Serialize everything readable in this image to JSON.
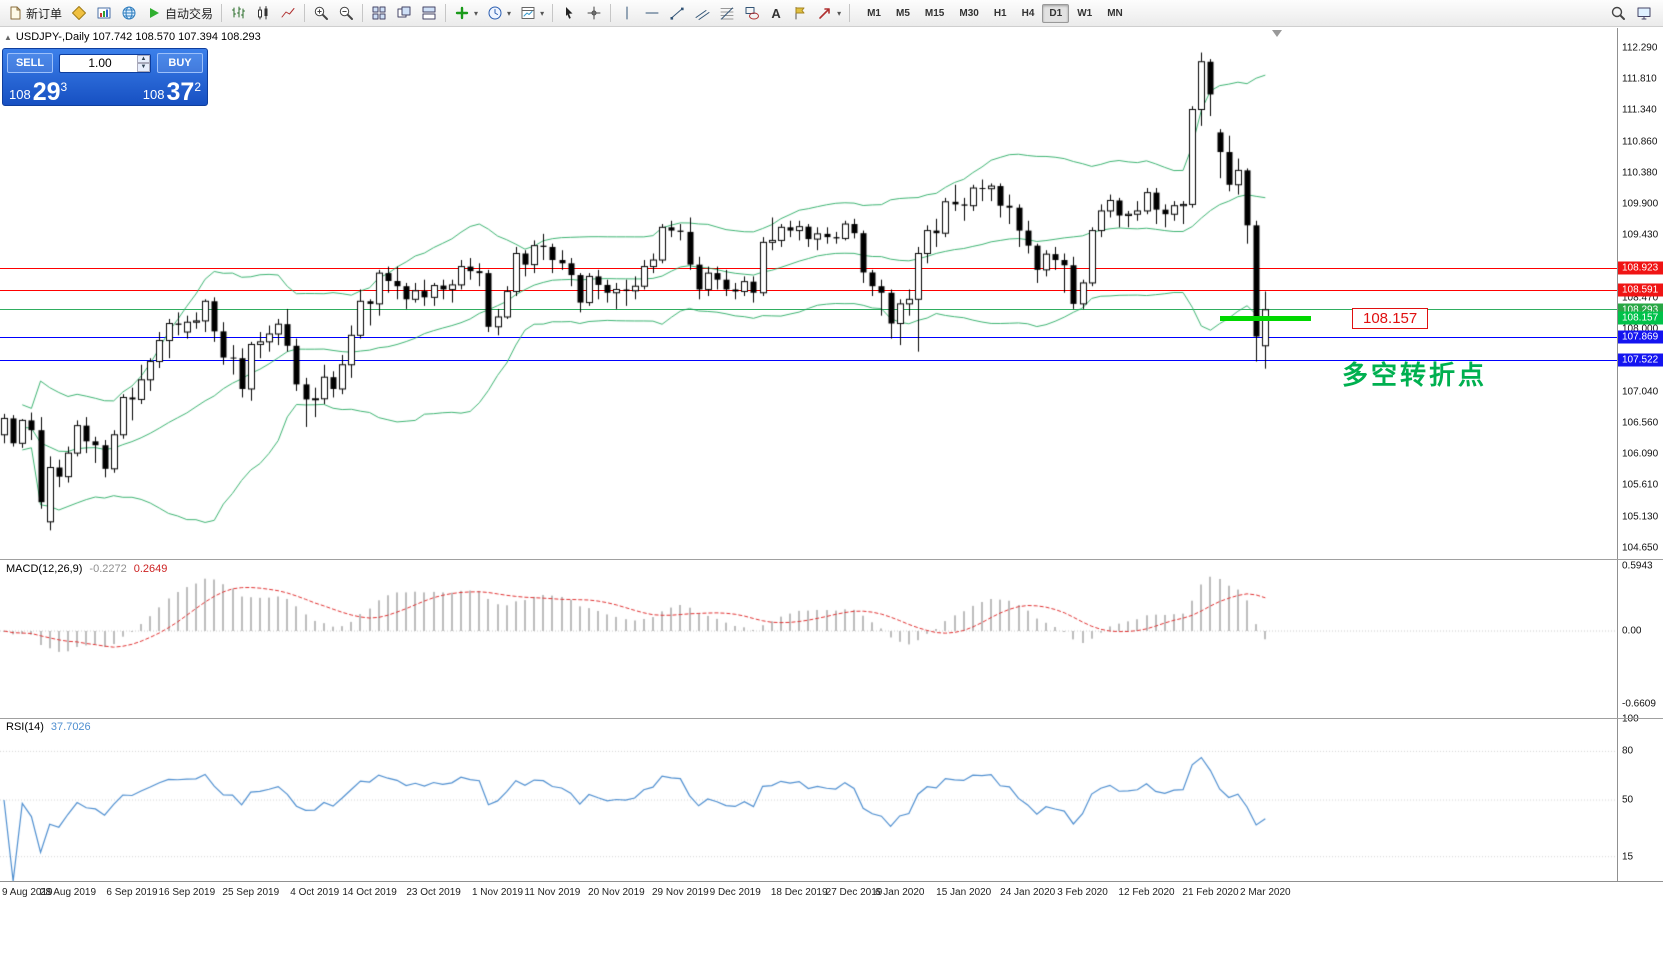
{
  "toolbar": {
    "new_order_label": "新订单",
    "autotrading_label": "自动交易",
    "timeframes": [
      "M1",
      "M5",
      "M15",
      "M30",
      "H1",
      "H4",
      "D1",
      "W1",
      "MN"
    ],
    "active_timeframe": "D1"
  },
  "icons": {
    "caret": "▾",
    "collapse": "▲",
    "text_tool": "A",
    "spin_up": "▲",
    "spin_down": "▼"
  },
  "symbol_info": {
    "text": "USDJPY-,Daily 107.742 108.570 107.394 108.293"
  },
  "trade_panel": {
    "sell_label": "SELL",
    "buy_label": "BUY",
    "lot_value": "1.00",
    "sell_price": {
      "main": "108",
      "big": "29",
      "sup": "3"
    },
    "buy_price": {
      "main": "108",
      "big": "37",
      "sup": "2"
    }
  },
  "annotations": {
    "price_label": "108.157",
    "turning_point_note": "多空转折点"
  },
  "h_lines": [
    {
      "price": 108.923,
      "color": "#ff0000",
      "name": "resistance-line-1"
    },
    {
      "price": 108.591,
      "color": "#ff0000",
      "name": "resistance-line-2"
    },
    {
      "price": 108.293,
      "color": "#2fae60",
      "name": "bid-price-line"
    },
    {
      "price": 107.869,
      "color": "#0000ff",
      "name": "support-line-1"
    },
    {
      "price": 107.522,
      "color": "#0000ff",
      "name": "support-line-2"
    }
  ],
  "green_segment": {
    "price": 108.157,
    "from_bar": 133,
    "to_bar": 143,
    "color": "#00d800",
    "label": "108.157"
  },
  "markers": [
    {
      "price": 108.923,
      "color": "#f01414"
    },
    {
      "price": 108.591,
      "color": "#f01414"
    },
    {
      "price": 108.293,
      "color": "#28a745"
    },
    {
      "price": 108.157,
      "color": "#00c24a"
    },
    {
      "price": 107.869,
      "color": "#1414f0"
    },
    {
      "price": 107.522,
      "color": "#1414f0"
    }
  ],
  "price_axis_ticks": [
    112.29,
    111.81,
    111.34,
    110.86,
    110.38,
    109.9,
    109.43,
    108.47,
    108.0,
    107.04,
    106.56,
    106.09,
    105.61,
    105.13,
    104.65
  ],
  "macd": {
    "label": "MACD(12,26,9)",
    "value_main": "-0.2272",
    "value_signal": "0.2649",
    "axis": [
      {
        "v": 0.5943,
        "t": "0.5943"
      },
      {
        "v": 0,
        "t": "0.00"
      },
      {
        "v": -0.6609,
        "t": "-0.6609"
      }
    ]
  },
  "rsi": {
    "label": "RSI(14)",
    "value": "37.7026",
    "axis": [
      {
        "v": 100,
        "t": "100"
      },
      {
        "v": 80,
        "t": "80"
      },
      {
        "v": 50,
        "t": "50"
      },
      {
        "v": 15,
        "t": "15"
      }
    ]
  },
  "chart_data": {
    "type": "candlestick",
    "symbol": "USDJPY-",
    "timeframe": "Daily",
    "ohlc_format": [
      "open",
      "high",
      "low",
      "close"
    ],
    "y_range": [
      104.45,
      112.58
    ],
    "indicators": {
      "bollinger": {
        "period": 20,
        "deviation": 2
      },
      "macd": {
        "fast": 12,
        "slow": 26,
        "signal": 9,
        "current_main": -0.2272,
        "current_signal": 0.2649
      },
      "rsi": {
        "period": 14,
        "current": 37.7026
      }
    },
    "x_labels": [
      {
        "i": 0,
        "t": "9 Aug 2019"
      },
      {
        "i": 7,
        "t": "28 Aug 2019"
      },
      {
        "i": 14,
        "t": "6 Sep 2019"
      },
      {
        "i": 20,
        "t": "16 Sep 2019"
      },
      {
        "i": 27,
        "t": "25 Sep 2019"
      },
      {
        "i": 34,
        "t": "4 Oct 2019"
      },
      {
        "i": 40,
        "t": "14 Oct 2019"
      },
      {
        "i": 47,
        "t": "23 Oct 2019"
      },
      {
        "i": 54,
        "t": "1 Nov 2019"
      },
      {
        "i": 60,
        "t": "11 Nov 2019"
      },
      {
        "i": 67,
        "t": "20 Nov 2019"
      },
      {
        "i": 74,
        "t": "29 Nov 2019"
      },
      {
        "i": 80,
        "t": "9 Dec 2019"
      },
      {
        "i": 87,
        "t": "18 Dec 2019"
      },
      {
        "i": 93,
        "t": "27 Dec 2019"
      },
      {
        "i": 98,
        "t": "6 Jan 2020"
      },
      {
        "i": 105,
        "t": "15 Jan 2020"
      },
      {
        "i": 112,
        "t": "24 Jan 2020"
      },
      {
        "i": 118,
        "t": "3 Feb 2020"
      },
      {
        "i": 125,
        "t": "12 Feb 2020"
      },
      {
        "i": 132,
        "t": "21 Feb 2020"
      },
      {
        "i": 138,
        "t": "2 Mar 2020"
      }
    ],
    "ohlc": [
      [
        106.38,
        106.7,
        106.25,
        106.63
      ],
      [
        106.63,
        106.68,
        106.2,
        106.25
      ],
      [
        106.25,
        106.62,
        106.18,
        106.6
      ],
      [
        106.6,
        106.72,
        106.3,
        106.45
      ],
      [
        106.45,
        106.65,
        105.25,
        105.35
      ],
      [
        105.05,
        106.05,
        104.92,
        105.88
      ],
      [
        105.88,
        106.0,
        105.58,
        105.74
      ],
      [
        105.74,
        106.2,
        105.65,
        106.1
      ],
      [
        106.1,
        106.6,
        106.05,
        106.52
      ],
      [
        106.52,
        106.65,
        106.1,
        106.28
      ],
      [
        106.28,
        106.35,
        105.95,
        106.22
      ],
      [
        106.22,
        106.3,
        105.73,
        105.86
      ],
      [
        105.86,
        106.45,
        105.8,
        106.38
      ],
      [
        106.38,
        107.0,
        106.32,
        106.95
      ],
      [
        106.95,
        107.1,
        106.6,
        106.92
      ],
      [
        106.92,
        107.45,
        106.85,
        107.22
      ],
      [
        107.22,
        107.55,
        107.05,
        107.5
      ],
      [
        107.5,
        107.95,
        107.4,
        107.82
      ],
      [
        107.82,
        108.15,
        107.55,
        108.08
      ],
      [
        108.08,
        108.25,
        107.9,
        108.06
      ],
      [
        107.95,
        108.2,
        107.85,
        108.1
      ],
      [
        108.1,
        108.25,
        108.0,
        108.12
      ],
      [
        108.12,
        108.45,
        107.95,
        108.42
      ],
      [
        108.42,
        108.48,
        107.8,
        107.96
      ],
      [
        107.96,
        108.1,
        107.45,
        107.56
      ],
      [
        107.56,
        107.75,
        107.3,
        107.55
      ],
      [
        107.55,
        107.7,
        106.95,
        107.08
      ],
      [
        107.08,
        107.8,
        106.9,
        107.76
      ],
      [
        107.76,
        107.95,
        107.55,
        107.8
      ],
      [
        107.8,
        108.05,
        107.65,
        107.92
      ],
      [
        107.92,
        108.15,
        107.75,
        108.07
      ],
      [
        108.07,
        108.3,
        107.65,
        107.74
      ],
      [
        107.74,
        107.85,
        107.05,
        107.15
      ],
      [
        107.15,
        107.25,
        106.5,
        106.92
      ],
      [
        106.92,
        107.1,
        106.65,
        106.93
      ],
      [
        106.93,
        107.45,
        106.85,
        107.26
      ],
      [
        107.26,
        107.35,
        106.95,
        107.08
      ],
      [
        107.08,
        107.6,
        107.0,
        107.45
      ],
      [
        107.45,
        108.05,
        107.25,
        107.9
      ],
      [
        107.9,
        108.6,
        107.85,
        108.42
      ],
      [
        108.42,
        108.45,
        108.05,
        108.38
      ],
      [
        108.38,
        108.9,
        108.2,
        108.85
      ],
      [
        108.85,
        108.95,
        108.55,
        108.73
      ],
      [
        108.73,
        108.95,
        108.45,
        108.65
      ],
      [
        108.65,
        108.7,
        108.3,
        108.45
      ],
      [
        108.45,
        108.7,
        108.4,
        108.58
      ],
      [
        108.58,
        108.75,
        108.35,
        108.48
      ],
      [
        108.48,
        108.7,
        108.35,
        108.66
      ],
      [
        108.66,
        108.75,
        108.45,
        108.6
      ],
      [
        108.6,
        108.75,
        108.4,
        108.67
      ],
      [
        108.67,
        109.05,
        108.6,
        108.95
      ],
      [
        108.95,
        109.08,
        108.75,
        108.88
      ],
      [
        108.88,
        109.0,
        108.65,
        108.85
      ],
      [
        108.85,
        108.9,
        107.95,
        108.03
      ],
      [
        108.03,
        108.3,
        107.9,
        108.18
      ],
      [
        108.18,
        108.65,
        108.15,
        108.57
      ],
      [
        108.57,
        109.25,
        108.5,
        109.15
      ],
      [
        109.15,
        109.2,
        108.8,
        108.98
      ],
      [
        108.98,
        109.35,
        108.85,
        109.27
      ],
      [
        109.27,
        109.45,
        109.05,
        109.25
      ],
      [
        109.25,
        109.3,
        108.85,
        109.05
      ],
      [
        109.05,
        109.2,
        108.9,
        109.0
      ],
      [
        109.0,
        109.08,
        108.65,
        108.82
      ],
      [
        108.82,
        108.85,
        108.25,
        108.4
      ],
      [
        108.4,
        108.85,
        108.35,
        108.8
      ],
      [
        108.8,
        108.9,
        108.45,
        108.67
      ],
      [
        108.67,
        108.75,
        108.4,
        108.55
      ],
      [
        108.55,
        108.7,
        108.3,
        108.6
      ],
      [
        108.6,
        108.75,
        108.35,
        108.58
      ],
      [
        108.58,
        108.8,
        108.45,
        108.65
      ],
      [
        108.65,
        109.05,
        108.6,
        108.95
      ],
      [
        108.95,
        109.15,
        108.85,
        109.05
      ],
      [
        109.05,
        109.6,
        109.0,
        109.55
      ],
      [
        109.55,
        109.65,
        109.4,
        109.5
      ],
      [
        109.5,
        109.6,
        109.35,
        109.48
      ],
      [
        109.48,
        109.7,
        108.9,
        108.98
      ],
      [
        108.98,
        109.1,
        108.45,
        108.6
      ],
      [
        108.6,
        108.95,
        108.5,
        108.85
      ],
      [
        108.85,
        108.95,
        108.6,
        108.75
      ],
      [
        108.75,
        108.9,
        108.5,
        108.6
      ],
      [
        108.6,
        108.7,
        108.45,
        108.57
      ],
      [
        108.57,
        108.8,
        108.5,
        108.72
      ],
      [
        108.72,
        108.8,
        108.4,
        108.55
      ],
      [
        108.55,
        109.4,
        108.5,
        109.32
      ],
      [
        109.32,
        109.7,
        109.2,
        109.35
      ],
      [
        109.35,
        109.6,
        109.25,
        109.55
      ],
      [
        109.55,
        109.65,
        109.4,
        109.5
      ],
      [
        109.5,
        109.65,
        109.35,
        109.56
      ],
      [
        109.56,
        109.6,
        109.25,
        109.37
      ],
      [
        109.37,
        109.55,
        109.2,
        109.45
      ],
      [
        109.45,
        109.55,
        109.3,
        109.4
      ],
      [
        109.4,
        109.48,
        109.3,
        109.38
      ],
      [
        109.38,
        109.65,
        109.35,
        109.6
      ],
      [
        109.6,
        109.68,
        109.38,
        109.46
      ],
      [
        109.46,
        109.5,
        108.7,
        108.86
      ],
      [
        108.86,
        108.9,
        108.5,
        108.65
      ],
      [
        108.65,
        108.75,
        108.2,
        108.55
      ],
      [
        108.55,
        108.6,
        107.85,
        108.08
      ],
      [
        108.08,
        108.45,
        107.75,
        108.38
      ],
      [
        108.38,
        108.6,
        108.2,
        108.45
      ],
      [
        108.45,
        109.25,
        107.65,
        109.15
      ],
      [
        109.15,
        109.58,
        109.0,
        109.5
      ],
      [
        109.5,
        109.68,
        109.25,
        109.46
      ],
      [
        109.46,
        110.0,
        109.4,
        109.94
      ],
      [
        109.94,
        110.2,
        109.8,
        109.9
      ],
      [
        109.9,
        110.0,
        109.65,
        109.88
      ],
      [
        109.88,
        110.2,
        109.8,
        110.15
      ],
      [
        110.15,
        110.28,
        109.95,
        110.14
      ],
      [
        110.14,
        110.22,
        109.95,
        110.18
      ],
      [
        110.18,
        110.22,
        109.7,
        109.88
      ],
      [
        109.88,
        110.05,
        109.6,
        109.85
      ],
      [
        109.85,
        109.9,
        109.25,
        109.5
      ],
      [
        109.5,
        109.65,
        109.15,
        109.27
      ],
      [
        109.27,
        109.3,
        108.7,
        108.9
      ],
      [
        108.9,
        109.2,
        108.8,
        109.14
      ],
      [
        109.14,
        109.25,
        108.9,
        109.05
      ],
      [
        109.05,
        109.15,
        108.55,
        108.97
      ],
      [
        108.97,
        109.1,
        108.3,
        108.38
      ],
      [
        108.38,
        108.75,
        108.3,
        108.7
      ],
      [
        108.7,
        109.55,
        108.65,
        109.5
      ],
      [
        109.5,
        109.9,
        109.4,
        109.8
      ],
      [
        109.8,
        110.05,
        109.7,
        109.96
      ],
      [
        109.96,
        110.0,
        109.55,
        109.73
      ],
      [
        109.73,
        109.8,
        109.55,
        109.75
      ],
      [
        109.75,
        109.95,
        109.65,
        109.8
      ],
      [
        109.8,
        110.15,
        109.75,
        110.08
      ],
      [
        110.08,
        110.15,
        109.6,
        109.82
      ],
      [
        109.82,
        109.9,
        109.55,
        109.75
      ],
      [
        109.75,
        109.95,
        109.65,
        109.88
      ],
      [
        109.88,
        109.95,
        109.6,
        109.9
      ],
      [
        109.9,
        111.4,
        109.85,
        111.35
      ],
      [
        111.35,
        112.22,
        111.1,
        112.08
      ],
      [
        112.08,
        112.12,
        111.25,
        111.58
      ],
      [
        111.0,
        111.05,
        110.3,
        110.7
      ],
      [
        110.7,
        110.95,
        110.1,
        110.2
      ],
      [
        110.2,
        110.6,
        110.05,
        110.42
      ],
      [
        110.42,
        110.45,
        109.3,
        109.58
      ],
      [
        109.58,
        109.65,
        107.5,
        107.88
      ],
      [
        107.74,
        108.57,
        107.39,
        108.29
      ]
    ]
  }
}
